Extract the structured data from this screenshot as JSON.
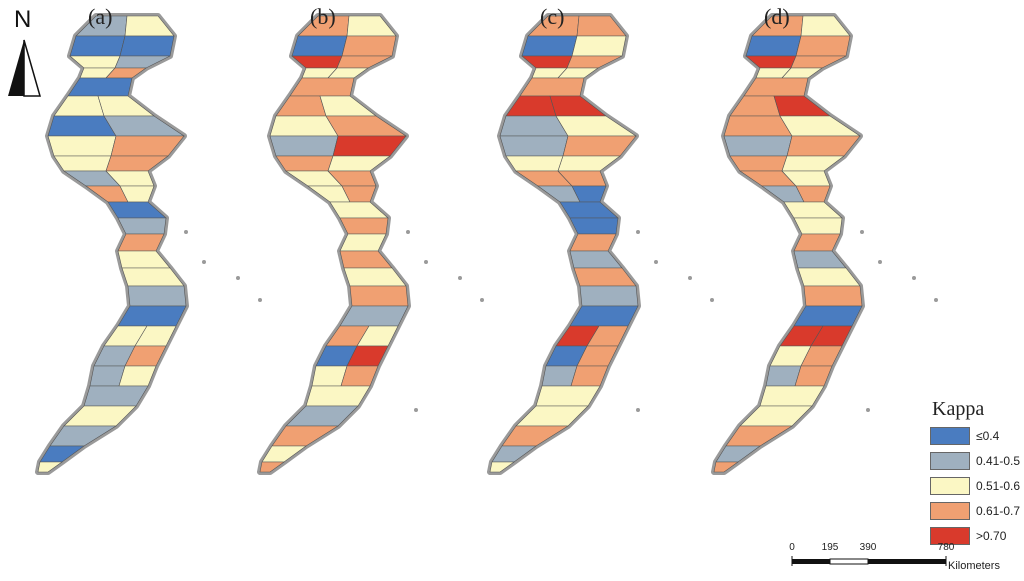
{
  "panels": [
    {
      "label": "(a)",
      "colors": [
        "c2",
        "c3",
        "c1",
        "c1",
        "c3",
        "c2",
        "c3",
        "c4",
        "c1",
        "c3",
        "c3",
        "c1",
        "c2",
        "c3",
        "c4",
        "c3",
        "c4",
        "c2",
        "c3",
        "c4",
        "c3",
        "c1",
        "c2",
        "c4",
        "c3",
        "c3",
        "c2",
        "c1",
        "c3",
        "c3",
        "c2",
        "c4",
        "c2",
        "c3",
        "c2",
        "c3",
        "c2",
        "c1",
        "c3",
        "c3"
      ]
    },
    {
      "label": "(b)",
      "colors": [
        "c4",
        "c3",
        "c1",
        "c4",
        "c5",
        "c4",
        "c3",
        "c3",
        "c4",
        "c4",
        "c3",
        "c3",
        "c4",
        "c2",
        "c5",
        "c4",
        "c3",
        "c3",
        "c4",
        "c3",
        "c4",
        "c3",
        "c4",
        "c3",
        "c4",
        "c3",
        "c4",
        "c2",
        "c4",
        "c3",
        "c1",
        "c5",
        "c3",
        "c4",
        "c3",
        "c2",
        "c4",
        "c3",
        "c4",
        "c3"
      ]
    },
    {
      "label": "(c)",
      "colors": [
        "c4",
        "c4",
        "c1",
        "c3",
        "c5",
        "c4",
        "c3",
        "c3",
        "c4",
        "c5",
        "c5",
        "c2",
        "c3",
        "c2",
        "c4",
        "c3",
        "c3",
        "c4",
        "c4",
        "c2",
        "c1",
        "c1",
        "c1",
        "c4",
        "c2",
        "c4",
        "c2",
        "c1",
        "c5",
        "c4",
        "c1",
        "c4",
        "c2",
        "c4",
        "c3",
        "c3",
        "c4",
        "c2",
        "c3",
        "c4"
      ]
    },
    {
      "label": "(d)",
      "colors": [
        "c4",
        "c3",
        "c1",
        "c4",
        "c5",
        "c4",
        "c3",
        "c3",
        "c4",
        "c4",
        "c5",
        "c4",
        "c3",
        "c2",
        "c4",
        "c4",
        "c3",
        "c4",
        "c3",
        "c2",
        "c4",
        "c3",
        "c3",
        "c4",
        "c2",
        "c3",
        "c4",
        "c1",
        "c5",
        "c5",
        "c3",
        "c4",
        "c2",
        "c4",
        "c3",
        "c3",
        "c4",
        "c2",
        "c4",
        "c3"
      ]
    }
  ],
  "north_arrow": {
    "letter": "N"
  },
  "legend": {
    "title": "Kappa",
    "classes": [
      {
        "key": "c1",
        "label": "≤0.4",
        "color": "#4a7cc0"
      },
      {
        "key": "c2",
        "label": "0.41-0.5",
        "color": "#9fb0bf"
      },
      {
        "key": "c3",
        "label": "0.51-0.6",
        "color": "#fbf7c4"
      },
      {
        "key": "c4",
        "label": "0.61-0.7",
        "color": "#f0a072"
      },
      {
        "key": "c5",
        "label": ">0.70",
        "color": "#d93a2c"
      }
    ]
  },
  "scale_bar": {
    "ticks": [
      {
        "label": "0",
        "value": 0
      },
      {
        "label": "195",
        "value": 195
      },
      {
        "label": "390",
        "value": 390
      },
      {
        "label": "780",
        "value": 780
      }
    ],
    "unit": "Kilometers"
  }
}
